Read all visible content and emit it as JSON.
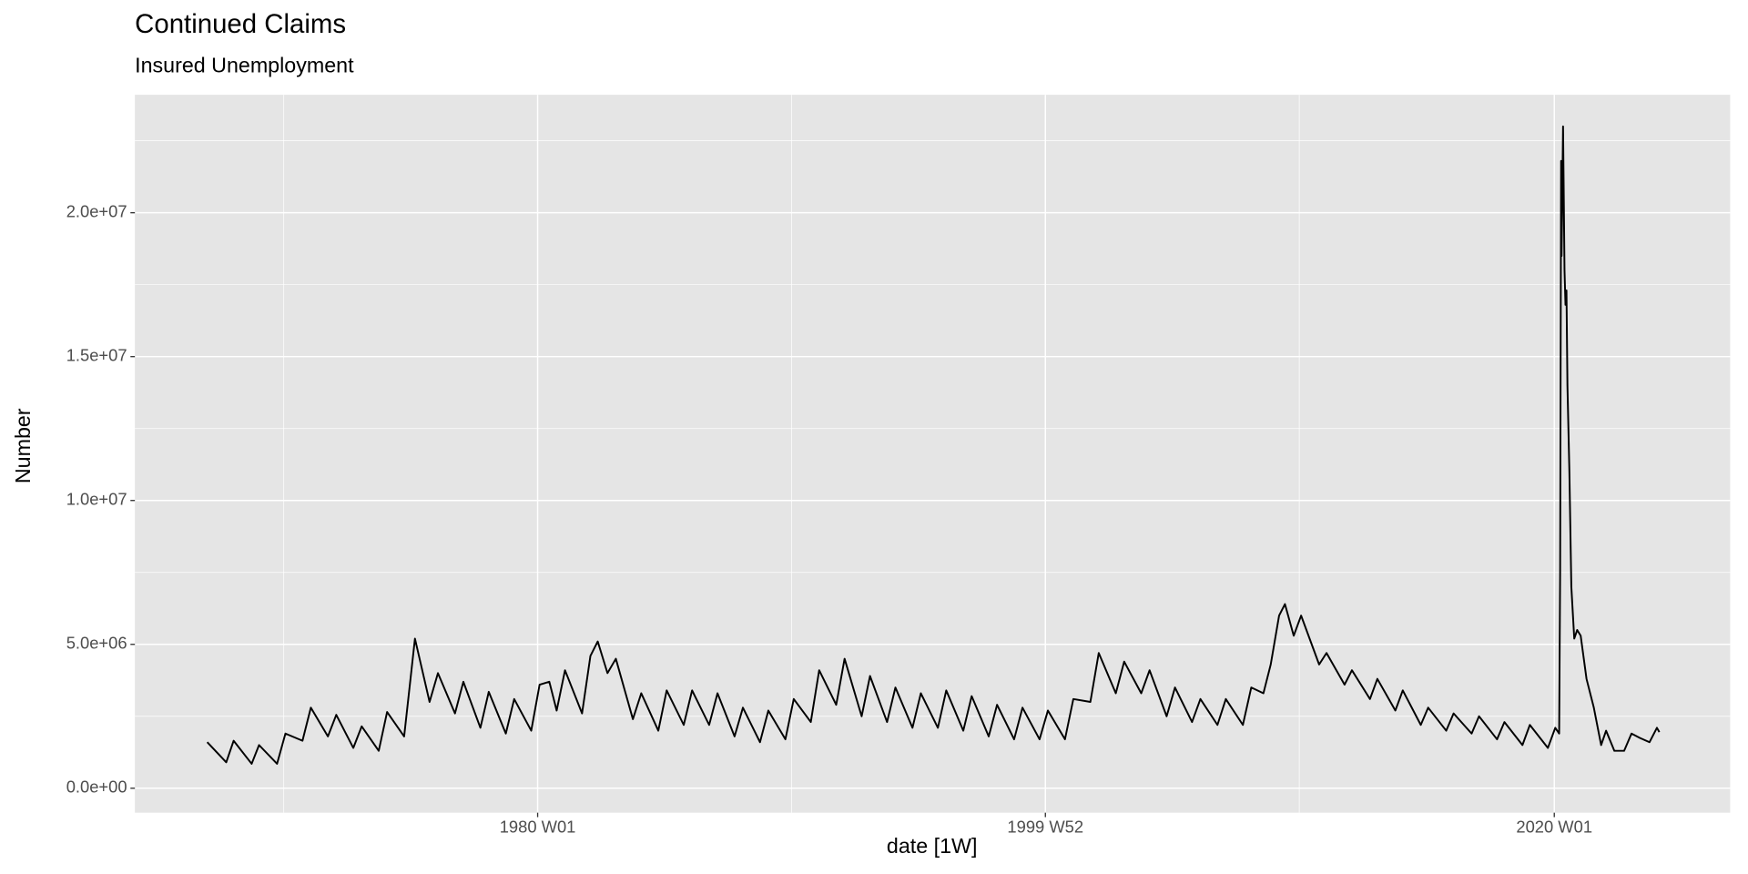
{
  "chart_data": {
    "type": "line",
    "title": "Continued Claims",
    "subtitle": "Insured Unemployment",
    "x_label": "date [1W]",
    "y_label": "Number",
    "color": "#000000",
    "grid": true,
    "xlim": [
      "1964 W09",
      "2026 W49"
    ],
    "xticks": [
      "1980 W01",
      "1999 W52",
      "2020 W01"
    ],
    "ylim": [
      -850000,
      24100000
    ],
    "yticks": [
      {
        "value": 0,
        "label": "0.0e+00"
      },
      {
        "value": 5000000,
        "label": "5.0e+06"
      },
      {
        "value": 10000000,
        "label": "1.0e+07"
      },
      {
        "value": 15000000,
        "label": "1.5e+07"
      },
      {
        "value": 20000000,
        "label": "2.0e+07"
      }
    ],
    "x": [
      "1967 W01",
      "1967 W40",
      "1968 W03",
      "1968 W40",
      "1969 W03",
      "1969 W40",
      "1970 W05",
      "1970 W40",
      "1971 W05",
      "1971 W40",
      "1972 W05",
      "1972 W40",
      "1973 W05",
      "1973 W40",
      "1974 W05",
      "1974 W40",
      "1975 W10",
      "1975 W40",
      "1976 W05",
      "1976 W40",
      "1977 W05",
      "1977 W40",
      "1978 W05",
      "1978 W40",
      "1979 W05",
      "1979 W40",
      "1980 W05",
      "1980 W25",
      "1980 W40",
      "1981 W05",
      "1981 W40",
      "1982 W05",
      "1982 W20",
      "1982 W40",
      "1983 W05",
      "1983 W40",
      "1984 W05",
      "1984 W40",
      "1985 W05",
      "1985 W40",
      "1986 W05",
      "1986 W40",
      "1987 W05",
      "1987 W40",
      "1988 W05",
      "1988 W40",
      "1989 W05",
      "1989 W40",
      "1990 W05",
      "1990 W40",
      "1991 W05",
      "1991 W40",
      "1992 W05",
      "1992 W40",
      "1993 W05",
      "1993 W40",
      "1994 W05",
      "1994 W40",
      "1995 W05",
      "1995 W40",
      "1996 W05",
      "1996 W40",
      "1997 W05",
      "1997 W40",
      "1998 W05",
      "1998 W40",
      "1999 W05",
      "1999 W40",
      "2000 W05",
      "2000 W40",
      "2001 W05",
      "2001 W40",
      "2002 W05",
      "2002 W40",
      "2003 W05",
      "2003 W40",
      "2004 W05",
      "2004 W40",
      "2005 W05",
      "2005 W40",
      "2006 W05",
      "2006 W40",
      "2007 W05",
      "2007 W40",
      "2008 W05",
      "2008 W30",
      "2008 W45",
      "2009 W10",
      "2009 W22",
      "2009 W40",
      "2010 W03",
      "2010 W40",
      "2011 W03",
      "2011 W40",
      "2012 W03",
      "2012 W40",
      "2013 W03",
      "2013 W40",
      "2014 W03",
      "2014 W40",
      "2015 W03",
      "2015 W40",
      "2016 W03",
      "2016 W40",
      "2017 W03",
      "2017 W40",
      "2018 W03",
      "2018 W40",
      "2019 W03",
      "2019 W40",
      "2020 W03",
      "2020 W11",
      "2020 W13",
      "2020 W15",
      "2020 W16",
      "2020 W19",
      "2020 W22",
      "2020 W24",
      "2020 W26",
      "2020 W28",
      "2020 W32",
      "2020 W36",
      "2020 W42",
      "2020 W48",
      "2021 W03",
      "2021 W15",
      "2021 W30",
      "2021 W45",
      "2022 W03",
      "2022 W20",
      "2022 W40",
      "2023 W03",
      "2023 W20",
      "2023 W40",
      "2024 W03",
      "2024 W08"
    ],
    "values": [
      1600000,
      900000,
      1650000,
      850000,
      1500000,
      850000,
      1900000,
      1650000,
      2800000,
      1800000,
      2550000,
      1400000,
      2150000,
      1300000,
      2650000,
      1800000,
      5200000,
      3000000,
      4000000,
      2600000,
      3700000,
      2100000,
      3350000,
      1900000,
      3100000,
      2000000,
      3600000,
      3700000,
      2700000,
      4100000,
      2600000,
      4600000,
      5100000,
      4000000,
      4500000,
      2400000,
      3300000,
      2000000,
      3400000,
      2200000,
      3400000,
      2200000,
      3300000,
      1800000,
      2800000,
      1600000,
      2700000,
      1700000,
      3100000,
      2300000,
      4100000,
      2900000,
      4500000,
      2500000,
      3900000,
      2300000,
      3500000,
      2100000,
      3300000,
      2100000,
      3400000,
      2000000,
      3200000,
      1800000,
      2900000,
      1700000,
      2800000,
      1700000,
      2700000,
      1700000,
      3100000,
      3000000,
      4700000,
      3300000,
      4400000,
      3300000,
      4100000,
      2500000,
      3500000,
      2300000,
      3100000,
      2200000,
      3100000,
      2200000,
      3500000,
      3300000,
      4300000,
      6000000,
      6400000,
      5300000,
      6000000,
      4300000,
      4700000,
      3600000,
      4100000,
      3100000,
      3800000,
      2700000,
      3400000,
      2200000,
      2800000,
      2000000,
      2600000,
      1900000,
      2500000,
      1700000,
      2300000,
      1500000,
      2200000,
      1400000,
      2100000,
      1900000,
      7500000,
      21800000,
      18500000,
      23000000,
      18000000,
      16800000,
      17300000,
      14000000,
      11000000,
      7000000,
      5200000,
      5500000,
      5300000,
      3800000,
      2800000,
      1500000,
      2000000,
      1300000,
      1300000,
      1900000,
      1750000,
      1600000,
      2100000,
      1950000
    ]
  }
}
